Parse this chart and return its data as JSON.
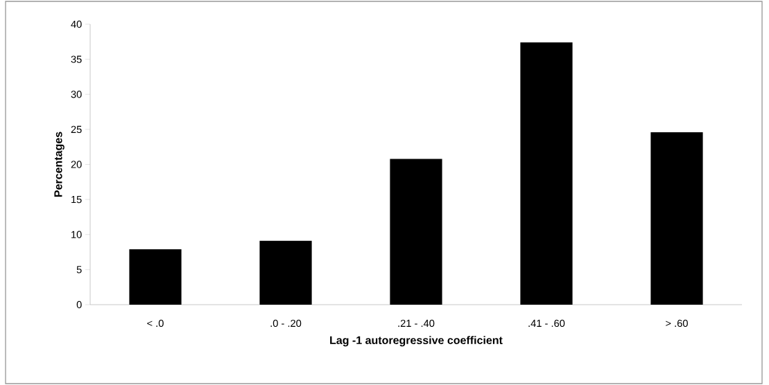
{
  "chart_data": {
    "type": "bar",
    "xlabel": "Lag -1 autoregressive coefficient",
    "ylabel": "Percentages",
    "categories": [
      "< .0",
      ".0 - .20",
      ".21 - .40",
      ".41 - .60",
      "> .60"
    ],
    "values": [
      7.9,
      9.1,
      20.8,
      37.4,
      24.6
    ],
    "color": "#000000",
    "ylim": [
      0,
      40
    ],
    "yticks": [
      0,
      5,
      10,
      15,
      20,
      25,
      30,
      35,
      40
    ]
  }
}
